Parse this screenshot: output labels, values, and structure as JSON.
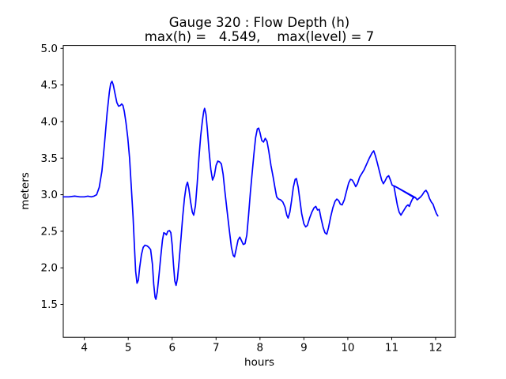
{
  "figure": {
    "background": "#ffffff",
    "text_color": "#000000"
  },
  "chart_data": {
    "type": "line",
    "title": "Gauge 320 : Flow Depth (h)",
    "subtitle": "max(h) =   4.549,    max(level) = 7",
    "xlabel": "hours",
    "ylabel": "meters",
    "xlim": [
      3.52,
      12.45
    ],
    "ylim": [
      1.05,
      5.04
    ],
    "xticks": [
      4,
      5,
      6,
      7,
      8,
      9,
      10,
      11,
      12
    ],
    "xtick_labels": [
      "4",
      "5",
      "6",
      "7",
      "8",
      "9",
      "10",
      "11",
      "12"
    ],
    "yticks": [
      1.5,
      2.0,
      2.5,
      3.0,
      3.5,
      4.0,
      4.5,
      5.0
    ],
    "ytick_labels": [
      "1.5",
      "2.0",
      "2.5",
      "3.0",
      "3.5",
      "4.0",
      "4.5",
      "5.0"
    ],
    "grid": false,
    "legend": null,
    "line_color": "#0000ff",
    "max_h": 4.549,
    "max_level": 7,
    "series": [
      {
        "name": "h",
        "points": [
          [
            3.52,
            2.97
          ],
          [
            3.65,
            2.97
          ],
          [
            3.78,
            2.98
          ],
          [
            3.9,
            2.97
          ],
          [
            4.0,
            2.97
          ],
          [
            4.08,
            2.98
          ],
          [
            4.16,
            2.97
          ],
          [
            4.22,
            2.98
          ],
          [
            4.28,
            3.0
          ],
          [
            4.34,
            3.1
          ],
          [
            4.4,
            3.32
          ],
          [
            4.46,
            3.7
          ],
          [
            4.52,
            4.12
          ],
          [
            4.57,
            4.4
          ],
          [
            4.6,
            4.52
          ],
          [
            4.63,
            4.55
          ],
          [
            4.66,
            4.5
          ],
          [
            4.7,
            4.38
          ],
          [
            4.74,
            4.26
          ],
          [
            4.78,
            4.21
          ],
          [
            4.82,
            4.22
          ],
          [
            4.85,
            4.24
          ],
          [
            4.88,
            4.22
          ],
          [
            4.91,
            4.14
          ],
          [
            4.95,
            3.98
          ],
          [
            4.99,
            3.78
          ],
          [
            5.03,
            3.5
          ],
          [
            5.07,
            3.1
          ],
          [
            5.11,
            2.7
          ],
          [
            5.14,
            2.3
          ],
          [
            5.17,
            1.95
          ],
          [
            5.2,
            1.79
          ],
          [
            5.23,
            1.83
          ],
          [
            5.26,
            2.0
          ],
          [
            5.3,
            2.18
          ],
          [
            5.34,
            2.28
          ],
          [
            5.38,
            2.31
          ],
          [
            5.43,
            2.3
          ],
          [
            5.47,
            2.28
          ],
          [
            5.51,
            2.25
          ],
          [
            5.55,
            2.05
          ],
          [
            5.58,
            1.78
          ],
          [
            5.61,
            1.6
          ],
          [
            5.63,
            1.57
          ],
          [
            5.66,
            1.67
          ],
          [
            5.7,
            1.9
          ],
          [
            5.74,
            2.15
          ],
          [
            5.78,
            2.38
          ],
          [
            5.81,
            2.48
          ],
          [
            5.84,
            2.47
          ],
          [
            5.87,
            2.45
          ],
          [
            5.9,
            2.5
          ],
          [
            5.94,
            2.51
          ],
          [
            5.97,
            2.48
          ],
          [
            6.0,
            2.32
          ],
          [
            6.03,
            2.05
          ],
          [
            6.06,
            1.82
          ],
          [
            6.09,
            1.76
          ],
          [
            6.12,
            1.85
          ],
          [
            6.16,
            2.1
          ],
          [
            6.2,
            2.4
          ],
          [
            6.24,
            2.7
          ],
          [
            6.28,
            2.95
          ],
          [
            6.32,
            3.12
          ],
          [
            6.35,
            3.17
          ],
          [
            6.38,
            3.08
          ],
          [
            6.42,
            2.9
          ],
          [
            6.46,
            2.76
          ],
          [
            6.49,
            2.72
          ],
          [
            6.53,
            2.85
          ],
          [
            6.57,
            3.15
          ],
          [
            6.61,
            3.5
          ],
          [
            6.65,
            3.8
          ],
          [
            6.69,
            4.02
          ],
          [
            6.72,
            4.14
          ],
          [
            6.74,
            4.18
          ],
          [
            6.77,
            4.1
          ],
          [
            6.8,
            3.9
          ],
          [
            6.84,
            3.6
          ],
          [
            6.88,
            3.35
          ],
          [
            6.92,
            3.2
          ],
          [
            6.96,
            3.26
          ],
          [
            7.0,
            3.4
          ],
          [
            7.04,
            3.46
          ],
          [
            7.08,
            3.45
          ],
          [
            7.12,
            3.42
          ],
          [
            7.16,
            3.28
          ],
          [
            7.2,
            3.05
          ],
          [
            7.25,
            2.78
          ],
          [
            7.3,
            2.52
          ],
          [
            7.35,
            2.28
          ],
          [
            7.39,
            2.17
          ],
          [
            7.42,
            2.15
          ],
          [
            7.46,
            2.26
          ],
          [
            7.5,
            2.38
          ],
          [
            7.54,
            2.42
          ],
          [
            7.58,
            2.37
          ],
          [
            7.62,
            2.32
          ],
          [
            7.66,
            2.33
          ],
          [
            7.7,
            2.45
          ],
          [
            7.74,
            2.72
          ],
          [
            7.78,
            3.02
          ],
          [
            7.82,
            3.28
          ],
          [
            7.86,
            3.55
          ],
          [
            7.9,
            3.78
          ],
          [
            7.94,
            3.9
          ],
          [
            7.97,
            3.91
          ],
          [
            8.0,
            3.85
          ],
          [
            8.04,
            3.74
          ],
          [
            8.08,
            3.72
          ],
          [
            8.12,
            3.77
          ],
          [
            8.16,
            3.73
          ],
          [
            8.2,
            3.6
          ],
          [
            8.25,
            3.4
          ],
          [
            8.3,
            3.24
          ],
          [
            8.34,
            3.1
          ],
          [
            8.38,
            2.97
          ],
          [
            8.42,
            2.94
          ],
          [
            8.47,
            2.93
          ],
          [
            8.52,
            2.9
          ],
          [
            8.57,
            2.83
          ],
          [
            8.61,
            2.72
          ],
          [
            8.64,
            2.68
          ],
          [
            8.68,
            2.76
          ],
          [
            8.72,
            2.92
          ],
          [
            8.76,
            3.1
          ],
          [
            8.8,
            3.21
          ],
          [
            8.83,
            3.22
          ],
          [
            8.87,
            3.1
          ],
          [
            8.91,
            2.92
          ],
          [
            8.95,
            2.74
          ],
          [
            9.0,
            2.6
          ],
          [
            9.04,
            2.56
          ],
          [
            9.08,
            2.58
          ],
          [
            9.13,
            2.68
          ],
          [
            9.18,
            2.76
          ],
          [
            9.23,
            2.82
          ],
          [
            9.27,
            2.84
          ],
          [
            9.31,
            2.79
          ],
          [
            9.35,
            2.8
          ],
          [
            9.39,
            2.68
          ],
          [
            9.44,
            2.55
          ],
          [
            9.48,
            2.48
          ],
          [
            9.52,
            2.46
          ],
          [
            9.56,
            2.55
          ],
          [
            9.61,
            2.7
          ],
          [
            9.66,
            2.82
          ],
          [
            9.71,
            2.91
          ],
          [
            9.75,
            2.94
          ],
          [
            9.79,
            2.92
          ],
          [
            9.83,
            2.87
          ],
          [
            9.87,
            2.86
          ],
          [
            9.92,
            2.93
          ],
          [
            9.97,
            3.05
          ],
          [
            10.02,
            3.16
          ],
          [
            10.06,
            3.21
          ],
          [
            10.1,
            3.2
          ],
          [
            10.14,
            3.16
          ],
          [
            10.18,
            3.11
          ],
          [
            10.22,
            3.15
          ],
          [
            10.27,
            3.24
          ],
          [
            10.32,
            3.29
          ],
          [
            10.37,
            3.34
          ],
          [
            10.43,
            3.42
          ],
          [
            10.49,
            3.5
          ],
          [
            10.55,
            3.57
          ],
          [
            10.59,
            3.6
          ],
          [
            10.63,
            3.53
          ],
          [
            10.67,
            3.44
          ],
          [
            10.72,
            3.32
          ],
          [
            10.77,
            3.2
          ],
          [
            10.81,
            3.15
          ],
          [
            10.85,
            3.19
          ],
          [
            10.89,
            3.24
          ],
          [
            10.93,
            3.26
          ],
          [
            10.97,
            3.2
          ],
          [
            11.01,
            3.13
          ],
          [
            11.05,
            3.12
          ],
          [
            11.09,
            2.98
          ],
          [
            11.13,
            2.85
          ],
          [
            11.17,
            2.76
          ],
          [
            11.21,
            2.72
          ],
          [
            11.25,
            2.76
          ],
          [
            11.29,
            2.8
          ],
          [
            11.33,
            2.84
          ],
          [
            11.37,
            2.86
          ],
          [
            11.4,
            2.84
          ],
          [
            11.44,
            2.9
          ],
          [
            11.48,
            2.95
          ],
          [
            11.51,
            2.96
          ],
          [
            11.06,
            3.12
          ],
          [
            11.54,
            2.96
          ],
          [
            11.58,
            2.93
          ],
          [
            11.62,
            2.95
          ],
          [
            11.66,
            2.97
          ],
          [
            11.7,
            3.0
          ],
          [
            11.74,
            3.04
          ],
          [
            11.78,
            3.06
          ],
          [
            11.82,
            3.02
          ],
          [
            11.86,
            2.95
          ],
          [
            11.9,
            2.9
          ],
          [
            11.94,
            2.87
          ],
          [
            11.98,
            2.8
          ],
          [
            12.02,
            2.74
          ],
          [
            12.05,
            2.71
          ]
        ]
      }
    ]
  }
}
